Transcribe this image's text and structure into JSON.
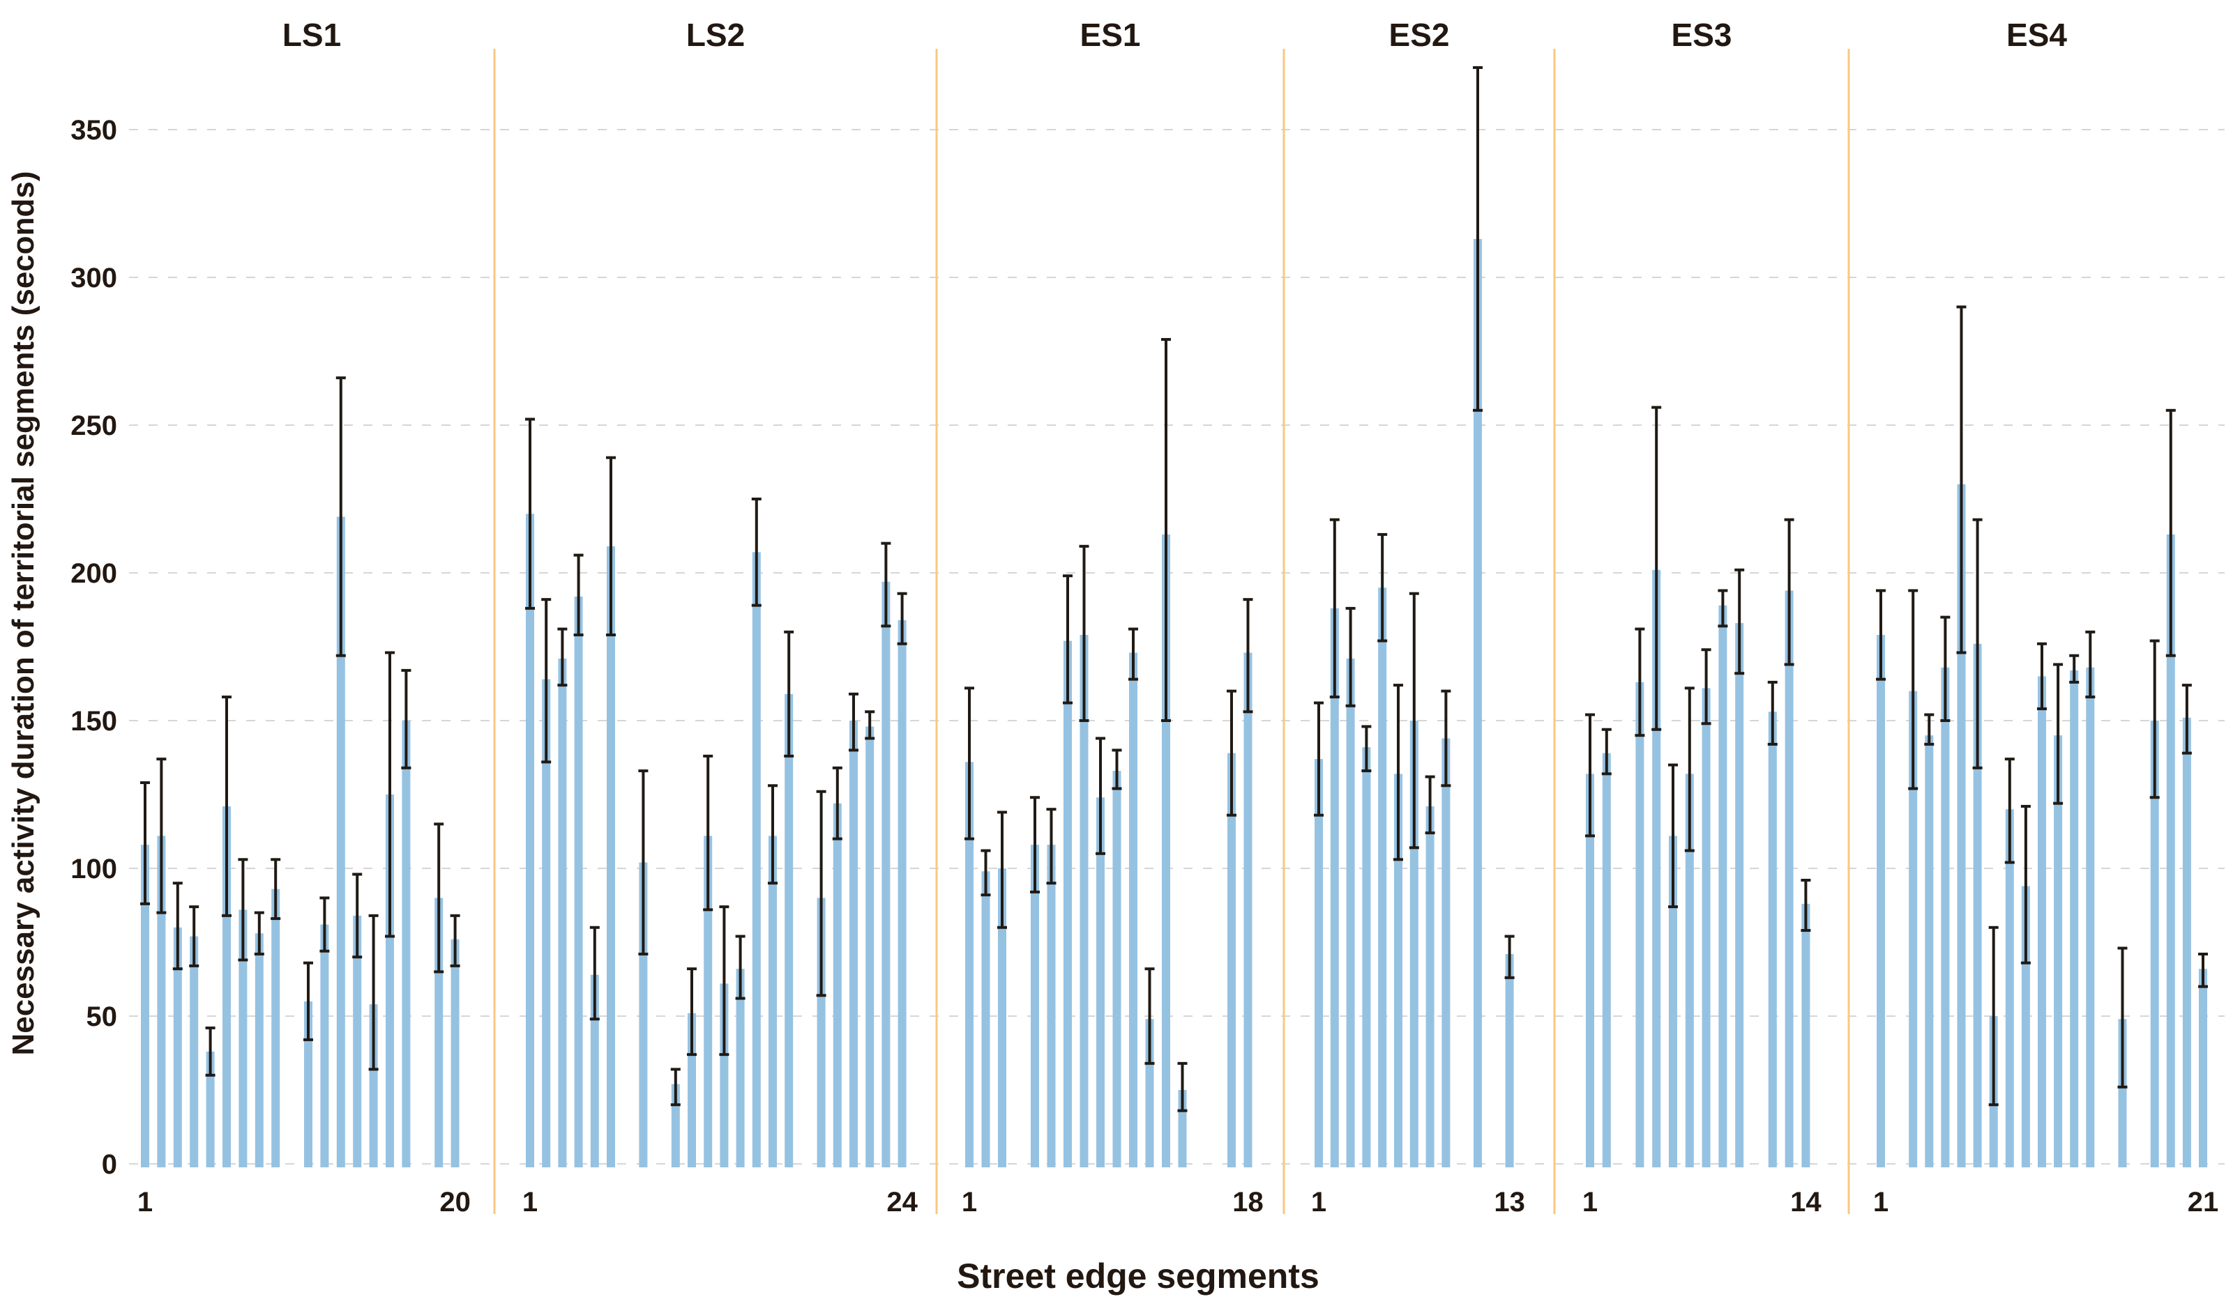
{
  "chart_data": {
    "type": "bar",
    "title": "",
    "ylabel": "Necessary activity duration of territorial segments (seconds)",
    "xlabel": "Street edge segments",
    "ylim": [
      0,
      350
    ],
    "yticks": [
      0,
      50,
      100,
      150,
      200,
      250,
      300,
      350
    ],
    "grid": "horizontal-dashed",
    "legend": "none",
    "error_bars": true,
    "colors": {
      "bar_fill": "#96C2E2",
      "error_bar": "#201A14",
      "panel_divider": "#FAC87E",
      "gridline": "#D6D6D6",
      "text": "#221811",
      "background": "#FFFFFF"
    },
    "panels": [
      {
        "label": "LS1",
        "segments": 20,
        "x_first_label": "1",
        "x_last_label": "20",
        "values": [
          108,
          111,
          80,
          77,
          38,
          121,
          86,
          78,
          93,
          null,
          55,
          81,
          219,
          84,
          54,
          125,
          150,
          null,
          90,
          76
        ],
        "err_low": [
          88,
          85,
          66,
          67,
          30,
          84,
          69,
          71,
          83,
          null,
          42,
          72,
          172,
          70,
          32,
          77,
          134,
          null,
          65,
          67
        ],
        "err_high": [
          129,
          137,
          95,
          87,
          46,
          158,
          103,
          85,
          103,
          null,
          68,
          90,
          266,
          98,
          84,
          173,
          167,
          null,
          115,
          84
        ]
      },
      {
        "label": "LS2",
        "segments": 24,
        "x_first_label": "1",
        "x_last_label": "24",
        "values": [
          220,
          164,
          171,
          192,
          64,
          209,
          null,
          102,
          null,
          27,
          51,
          111,
          61,
          66,
          207,
          111,
          159,
          null,
          90,
          122,
          150,
          148,
          197,
          184
        ],
        "err_low": [
          188,
          136,
          162,
          179,
          49,
          179,
          null,
          71,
          null,
          20,
          37,
          86,
          37,
          56,
          189,
          95,
          138,
          null,
          57,
          110,
          140,
          144,
          182,
          176
        ],
        "err_high": [
          252,
          191,
          181,
          206,
          80,
          239,
          null,
          133,
          null,
          32,
          66,
          138,
          87,
          77,
          225,
          128,
          180,
          null,
          126,
          134,
          159,
          153,
          210,
          193
        ]
      },
      {
        "label": "ES1",
        "segments": 18,
        "x_first_label": "1",
        "x_last_label": "18",
        "values": [
          136,
          99,
          100,
          null,
          108,
          108,
          177,
          179,
          124,
          133,
          173,
          49,
          213,
          25,
          null,
          null,
          139,
          173
        ],
        "err_low": [
          110,
          91,
          80,
          null,
          92,
          95,
          156,
          150,
          105,
          127,
          164,
          34,
          150,
          18,
          null,
          null,
          118,
          153
        ],
        "err_high": [
          161,
          106,
          119,
          null,
          124,
          120,
          199,
          209,
          144,
          140,
          181,
          66,
          279,
          34,
          null,
          null,
          160,
          191
        ]
      },
      {
        "label": "ES2",
        "segments": 13,
        "x_first_label": "1",
        "x_last_label": "13",
        "values": [
          137,
          188,
          171,
          141,
          195,
          132,
          150,
          121,
          144,
          null,
          313,
          null,
          71
        ],
        "err_low": [
          118,
          158,
          155,
          133,
          177,
          103,
          107,
          112,
          128,
          null,
          255,
          null,
          63
        ],
        "err_high": [
          156,
          218,
          188,
          148,
          213,
          162,
          193,
          131,
          160,
          null,
          371,
          null,
          77
        ]
      },
      {
        "label": "ES3",
        "segments": 14,
        "x_first_label": "1",
        "x_last_label": "14",
        "values": [
          132,
          139,
          null,
          163,
          201,
          111,
          132,
          161,
          189,
          183,
          null,
          153,
          194,
          88
        ],
        "err_low": [
          111,
          132,
          null,
          145,
          147,
          87,
          106,
          149,
          182,
          166,
          null,
          142,
          169,
          79
        ],
        "err_high": [
          152,
          147,
          null,
          181,
          256,
          135,
          161,
          174,
          194,
          201,
          null,
          163,
          218,
          96
        ]
      },
      {
        "label": "ES4",
        "segments": 21,
        "x_first_label": "1",
        "x_last_label": "21",
        "values": [
          179,
          null,
          160,
          145,
          168,
          230,
          176,
          50,
          120,
          94,
          165,
          145,
          167,
          168,
          null,
          49,
          null,
          150,
          213,
          151,
          66
        ],
        "err_low": [
          164,
          null,
          127,
          142,
          150,
          173,
          134,
          20,
          102,
          68,
          154,
          122,
          163,
          158,
          null,
          26,
          null,
          124,
          172,
          139,
          60
        ],
        "err_high": [
          194,
          null,
          194,
          152,
          185,
          290,
          218,
          80,
          137,
          121,
          176,
          169,
          172,
          180,
          null,
          73,
          null,
          177,
          255,
          162,
          71
        ]
      }
    ]
  }
}
